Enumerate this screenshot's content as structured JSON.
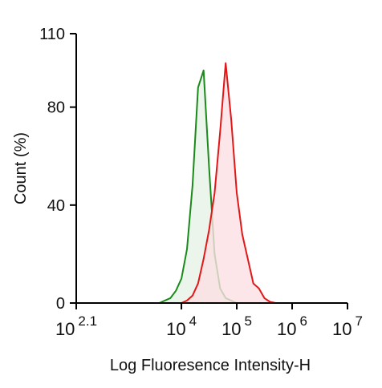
{
  "chart_data": {
    "type": "histogram-overlay",
    "x_label": "Log Fluoresence Intensity-H",
    "y_label": "Count  (%)",
    "x_log": true,
    "xlim": [
      125.89,
      10000000
    ],
    "xticks": [
      {
        "value": 125.89,
        "label": "10",
        "exponent": "2.1"
      },
      {
        "value": 10000,
        "label": "10",
        "exponent": "4"
      },
      {
        "value": 100000,
        "label": "10",
        "exponent": "5"
      },
      {
        "value": 1000000,
        "label": "10",
        "exponent": "6"
      },
      {
        "value": 10000000,
        "label": "10",
        "exponent": "7"
      }
    ],
    "ylim": [
      0,
      110
    ],
    "yticks": [
      0,
      40,
      80,
      110
    ],
    "x": [
      3981,
      5012,
      6310,
      7943,
      10000,
      12589,
      15849,
      19953,
      25119,
      31623,
      39811,
      50119,
      63096,
      79433,
      100000,
      125893,
      158489,
      199526,
      251189,
      316228,
      398107,
      501187
    ],
    "series": [
      {
        "color": "#1a8a1a",
        "fill": "#e6f2e6",
        "values": [
          0,
          1,
          2,
          5,
          10,
          22,
          48,
          88,
          95,
          55,
          20,
          6,
          2,
          1,
          0,
          0,
          0,
          0,
          0,
          0,
          0,
          0
        ]
      },
      {
        "color": "#e01818",
        "fill": "#fbe0e4",
        "values": [
          0,
          0,
          0,
          0,
          0,
          1,
          3,
          8,
          18,
          30,
          45,
          70,
          98,
          75,
          45,
          28,
          18,
          8,
          6,
          2,
          0.5,
          0
        ]
      }
    ]
  }
}
